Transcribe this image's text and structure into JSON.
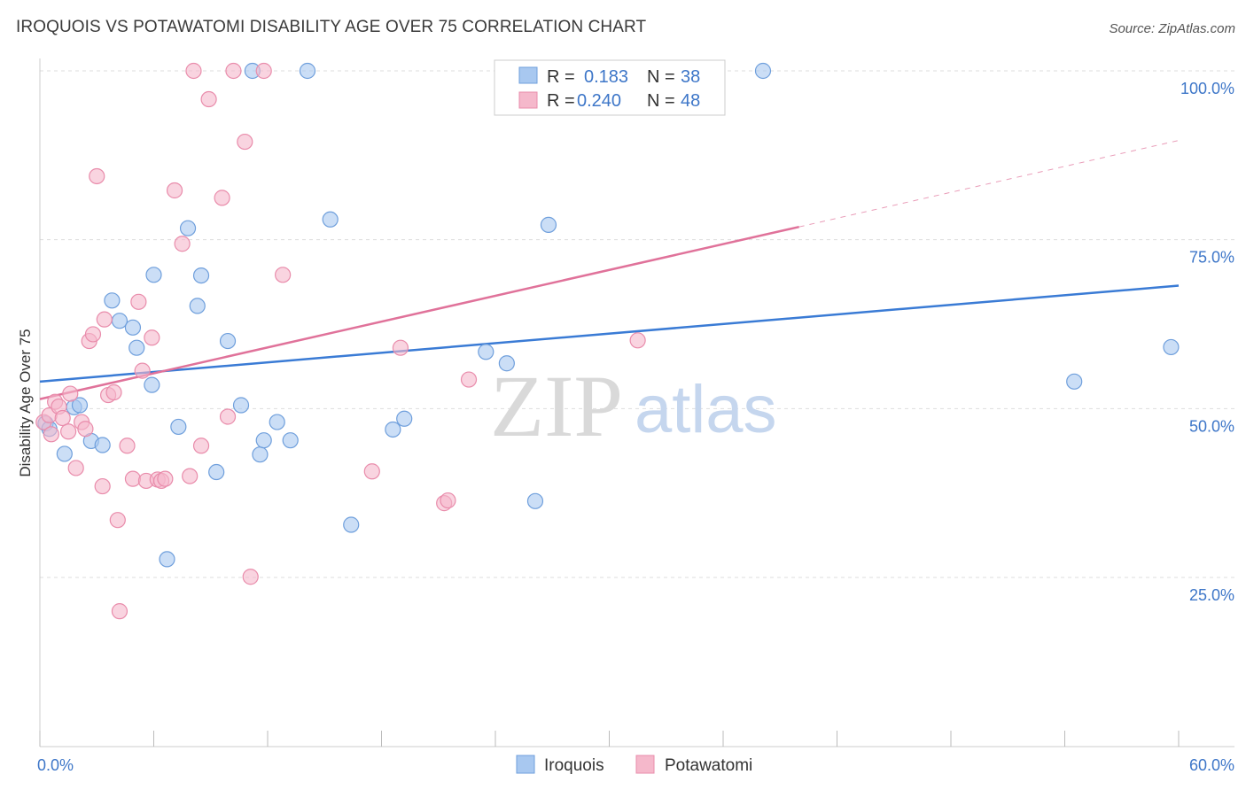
{
  "header": {
    "title": "IROQUOIS VS POTAWATOMI DISABILITY AGE OVER 75 CORRELATION CHART",
    "source": "Source: ZipAtlas.com"
  },
  "watermark": {
    "zip": "ZIP",
    "atlas": "atlas"
  },
  "legend": {
    "rows": [
      {
        "r_label": "R =",
        "r_value": "0.183",
        "n_label": "N =",
        "n_value": "38",
        "color": "#a8c8f0"
      },
      {
        "r_label": "R =",
        "r_value": "0.240",
        "n_label": "N =",
        "n_value": "48",
        "color": "#f5b8cb"
      }
    ]
  },
  "bottom_legend": {
    "items": [
      "Iroquois",
      "Potawatomi"
    ]
  },
  "colors": {
    "iroquois_fill": "#a8c8f0",
    "iroquois_stroke": "#6f9fdc",
    "iroquois_line": "#3a7bd5",
    "potawatomi_fill": "#f5b8cb",
    "potawatomi_stroke": "#e98cab",
    "potawatomi_line": "#e0729a",
    "axis_label": "#3d76c8",
    "grid": "#dddddd"
  },
  "chart_data": {
    "type": "scatter",
    "title": "IROQUOIS VS POTAWATOMI DISABILITY AGE OVER 75 CORRELATION CHART",
    "xlabel": "",
    "ylabel": "Disability Age Over 75",
    "xlim": [
      0,
      60
    ],
    "ylim": [
      0,
      105
    ],
    "x_tick_labels": [
      "0.0%",
      "60.0%"
    ],
    "y_tick_labels": [
      "25.0%",
      "50.0%",
      "75.0%",
      "100.0%"
    ],
    "y_ticks": [
      25,
      50,
      75,
      100
    ],
    "grid": true,
    "legend_position": "top-center",
    "series": [
      {
        "name": "Iroquois",
        "r": 0.183,
        "n": 38,
        "trend": {
          "x": [
            0,
            60
          ],
          "y": [
            54.0,
            68.2
          ]
        },
        "points": [
          [
            0.3,
            47.8
          ],
          [
            0.5,
            47.0
          ],
          [
            1.3,
            43.3
          ],
          [
            1.8,
            50.2
          ],
          [
            2.1,
            50.5
          ],
          [
            2.7,
            45.2
          ],
          [
            3.3,
            44.6
          ],
          [
            3.8,
            66.0
          ],
          [
            4.2,
            63.0
          ],
          [
            4.9,
            62.0
          ],
          [
            5.1,
            59.0
          ],
          [
            5.9,
            53.5
          ],
          [
            6.0,
            69.8
          ],
          [
            6.7,
            27.7
          ],
          [
            7.3,
            47.3
          ],
          [
            7.8,
            76.7
          ],
          [
            8.3,
            65.2
          ],
          [
            8.5,
            69.7
          ],
          [
            9.3,
            40.6
          ],
          [
            9.9,
            60.0
          ],
          [
            10.6,
            50.5
          ],
          [
            11.2,
            100.0
          ],
          [
            11.6,
            43.2
          ],
          [
            11.8,
            45.3
          ],
          [
            12.5,
            48.0
          ],
          [
            13.2,
            45.3
          ],
          [
            14.1,
            100.0
          ],
          [
            15.3,
            78.0
          ],
          [
            16.4,
            32.8
          ],
          [
            18.6,
            46.9
          ],
          [
            19.2,
            48.5
          ],
          [
            23.5,
            58.4
          ],
          [
            24.6,
            56.7
          ],
          [
            26.1,
            36.3
          ],
          [
            26.8,
            77.2
          ],
          [
            38.1,
            100.0
          ],
          [
            54.5,
            54.0
          ],
          [
            59.6,
            59.1
          ]
        ]
      },
      {
        "name": "Potawatomi",
        "r": 0.24,
        "n": 48,
        "trend": {
          "x": [
            0,
            40
          ],
          "y": [
            51.4,
            76.9
          ]
        },
        "trend_dashed": {
          "x": [
            40,
            60
          ],
          "y": [
            76.9,
            89.7
          ]
        },
        "points": [
          [
            0.2,
            48.0
          ],
          [
            0.5,
            49.0
          ],
          [
            0.6,
            46.2
          ],
          [
            0.8,
            51.0
          ],
          [
            1.0,
            50.3
          ],
          [
            1.2,
            48.6
          ],
          [
            1.5,
            46.6
          ],
          [
            1.6,
            52.2
          ],
          [
            1.9,
            41.2
          ],
          [
            2.2,
            48.0
          ],
          [
            2.4,
            47.0
          ],
          [
            2.6,
            60.0
          ],
          [
            2.8,
            61.0
          ],
          [
            3.0,
            84.4
          ],
          [
            3.3,
            38.5
          ],
          [
            3.4,
            63.2
          ],
          [
            3.6,
            52.0
          ],
          [
            3.9,
            52.4
          ],
          [
            4.1,
            33.5
          ],
          [
            4.2,
            20.0
          ],
          [
            4.6,
            44.5
          ],
          [
            4.9,
            39.6
          ],
          [
            5.2,
            65.8
          ],
          [
            5.4,
            55.6
          ],
          [
            5.6,
            39.3
          ],
          [
            5.9,
            60.5
          ],
          [
            6.2,
            39.5
          ],
          [
            6.4,
            39.3
          ],
          [
            6.6,
            39.6
          ],
          [
            7.1,
            82.3
          ],
          [
            7.5,
            74.4
          ],
          [
            7.9,
            40.0
          ],
          [
            8.1,
            100.0
          ],
          [
            8.5,
            44.5
          ],
          [
            8.9,
            95.8
          ],
          [
            9.6,
            81.2
          ],
          [
            9.9,
            48.8
          ],
          [
            10.2,
            100.0
          ],
          [
            10.8,
            89.5
          ],
          [
            11.1,
            25.1
          ],
          [
            11.8,
            100.0
          ],
          [
            12.8,
            69.8
          ],
          [
            17.5,
            40.7
          ],
          [
            19.0,
            59.0
          ],
          [
            21.3,
            36.0
          ],
          [
            21.5,
            36.4
          ],
          [
            22.6,
            54.3
          ],
          [
            31.5,
            60.1
          ]
        ]
      }
    ]
  }
}
